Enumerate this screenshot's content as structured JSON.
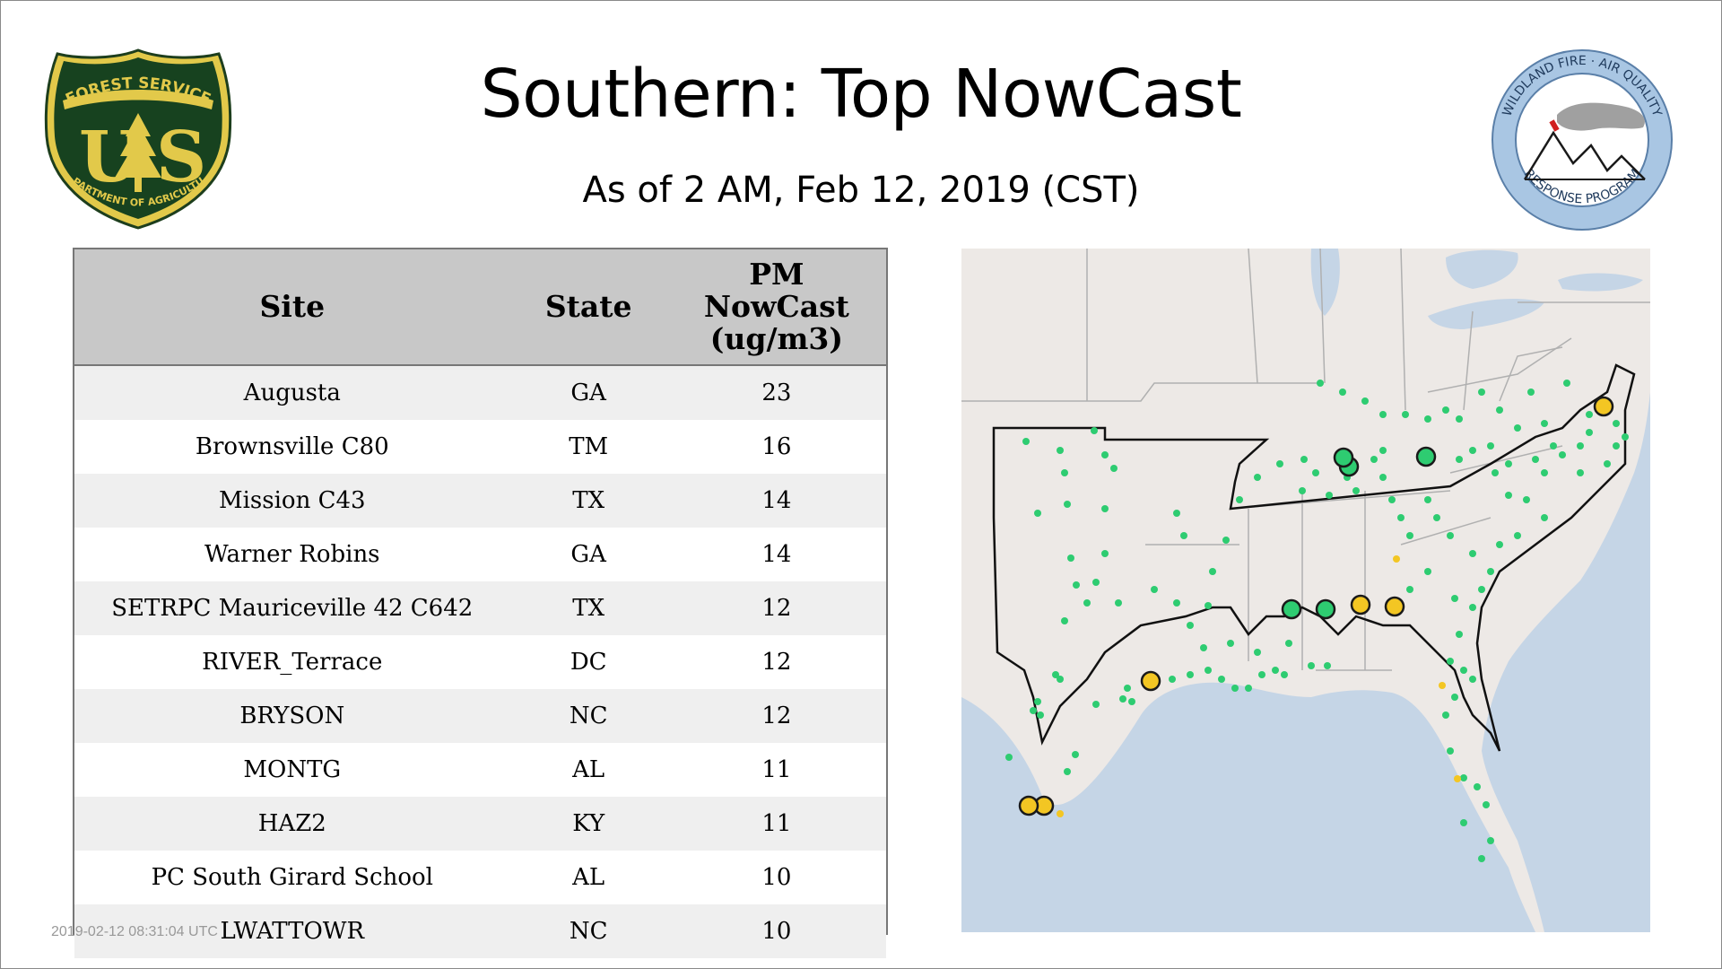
{
  "title": "Southern: Top NowCast",
  "subtitle": "As of  2 AM, Feb 12, 2019 (CST)",
  "logos": {
    "forest_service": {
      "top_text": "FOREST SERVICE",
      "letters": "US",
      "bottom_text": "DEPARTMENT OF AGRICULTURE"
    },
    "wildland": {
      "top_text": "WILDLAND FIRE · AIR QUALITY",
      "bottom_text": "RESPONSE PROGRAM"
    }
  },
  "table": {
    "headers": {
      "site": "Site",
      "state": "State",
      "pm_line1": "PM",
      "pm_line2": "NowCast",
      "pm_line3": "(ug/m3)"
    },
    "rows": [
      {
        "site": "Augusta",
        "state": "GA",
        "pm": "23"
      },
      {
        "site": "Brownsville C80",
        "state": "TM",
        "pm": "16"
      },
      {
        "site": "Mission C43",
        "state": "TX",
        "pm": "14"
      },
      {
        "site": "Warner Robins",
        "state": "GA",
        "pm": "14"
      },
      {
        "site": "SETRPC Mauriceville 42 C642",
        "state": "TX",
        "pm": "12"
      },
      {
        "site": "RIVER_Terrace",
        "state": "DC",
        "pm": "12"
      },
      {
        "site": "BRYSON",
        "state": "NC",
        "pm": "12"
      },
      {
        "site": "MONTG",
        "state": "AL",
        "pm": "11"
      },
      {
        "site": "HAZ2",
        "state": "KY",
        "pm": "11"
      },
      {
        "site": "PC South Girard School",
        "state": "AL",
        "pm": "10"
      },
      {
        "site": "LWATTOWR",
        "state": "NC",
        "pm": "10"
      }
    ]
  },
  "timestamp": "2019-02-12 08:31:04 UTC",
  "map": {
    "colors": {
      "land": "#ede9e6",
      "water": "#c5d5e6",
      "good": "#2ecc71",
      "moderate": "#f3c623",
      "border": "#b0b0b0",
      "region": "#111111"
    }
  }
}
